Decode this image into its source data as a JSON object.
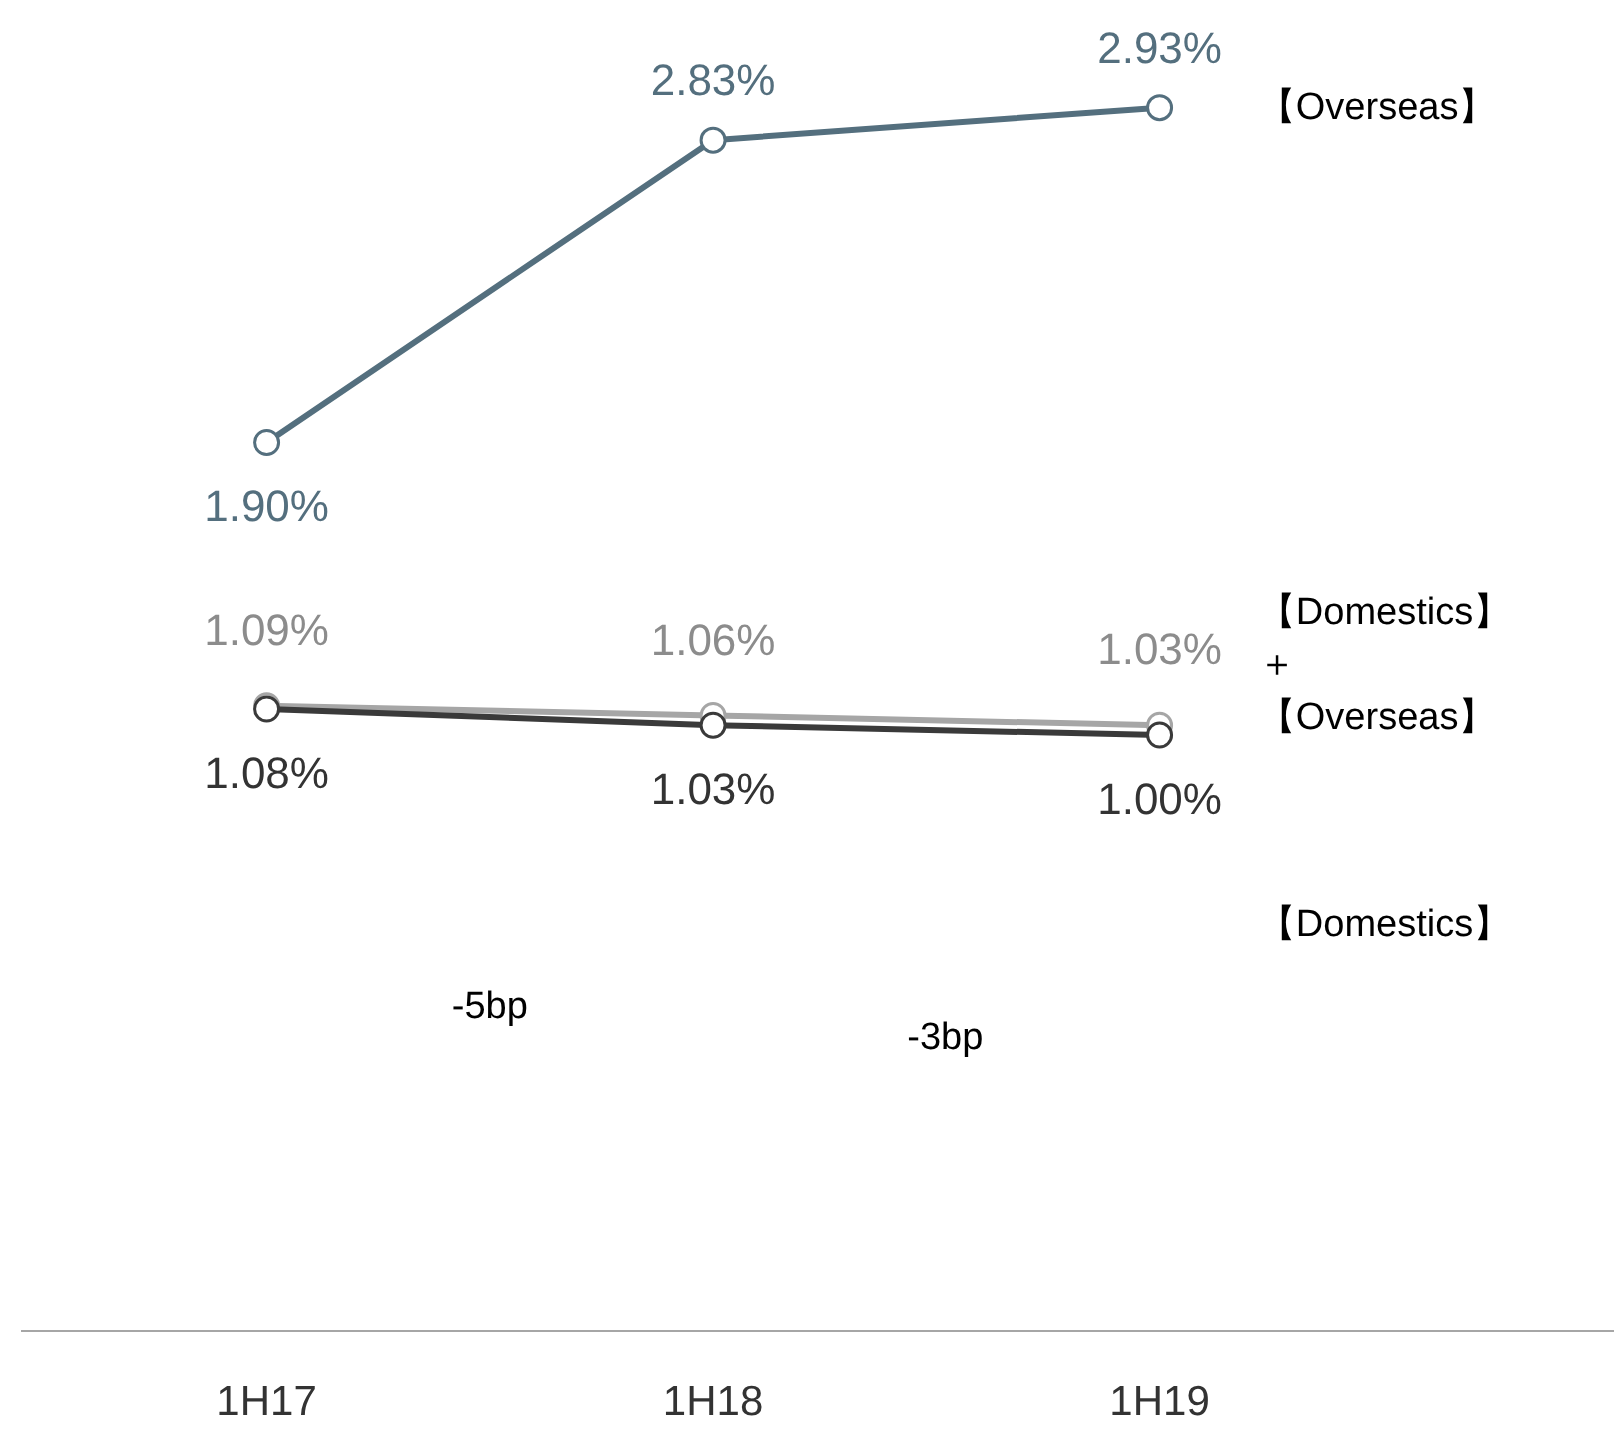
{
  "chart_data": {
    "type": "line",
    "categories": [
      "1H17",
      "1H18",
      "1H19"
    ],
    "series": [
      {
        "name": "【Overseas】",
        "color": "#546f7e",
        "values": [
          1.9,
          2.83,
          2.93
        ],
        "value_labels": [
          "1.90%",
          "2.83%",
          "2.93%"
        ]
      },
      {
        "name": "【Domestics】＋【Overseas】",
        "color": "#a6a6a6",
        "values": [
          1.09,
          1.06,
          1.03
        ],
        "value_labels": [
          "1.09%",
          "1.06%",
          "1.03%"
        ]
      },
      {
        "name": "【Domestics】",
        "color": "#3a3a3a",
        "values": [
          1.08,
          1.03,
          1.0
        ],
        "value_labels": [
          "1.08%",
          "1.03%",
          "1.00%"
        ]
      }
    ],
    "tick_labels": "x",
    "grid": false,
    "marker": "circle",
    "line_style": "solid",
    "annotations": [
      "-5bp",
      "-3bp"
    ]
  }
}
